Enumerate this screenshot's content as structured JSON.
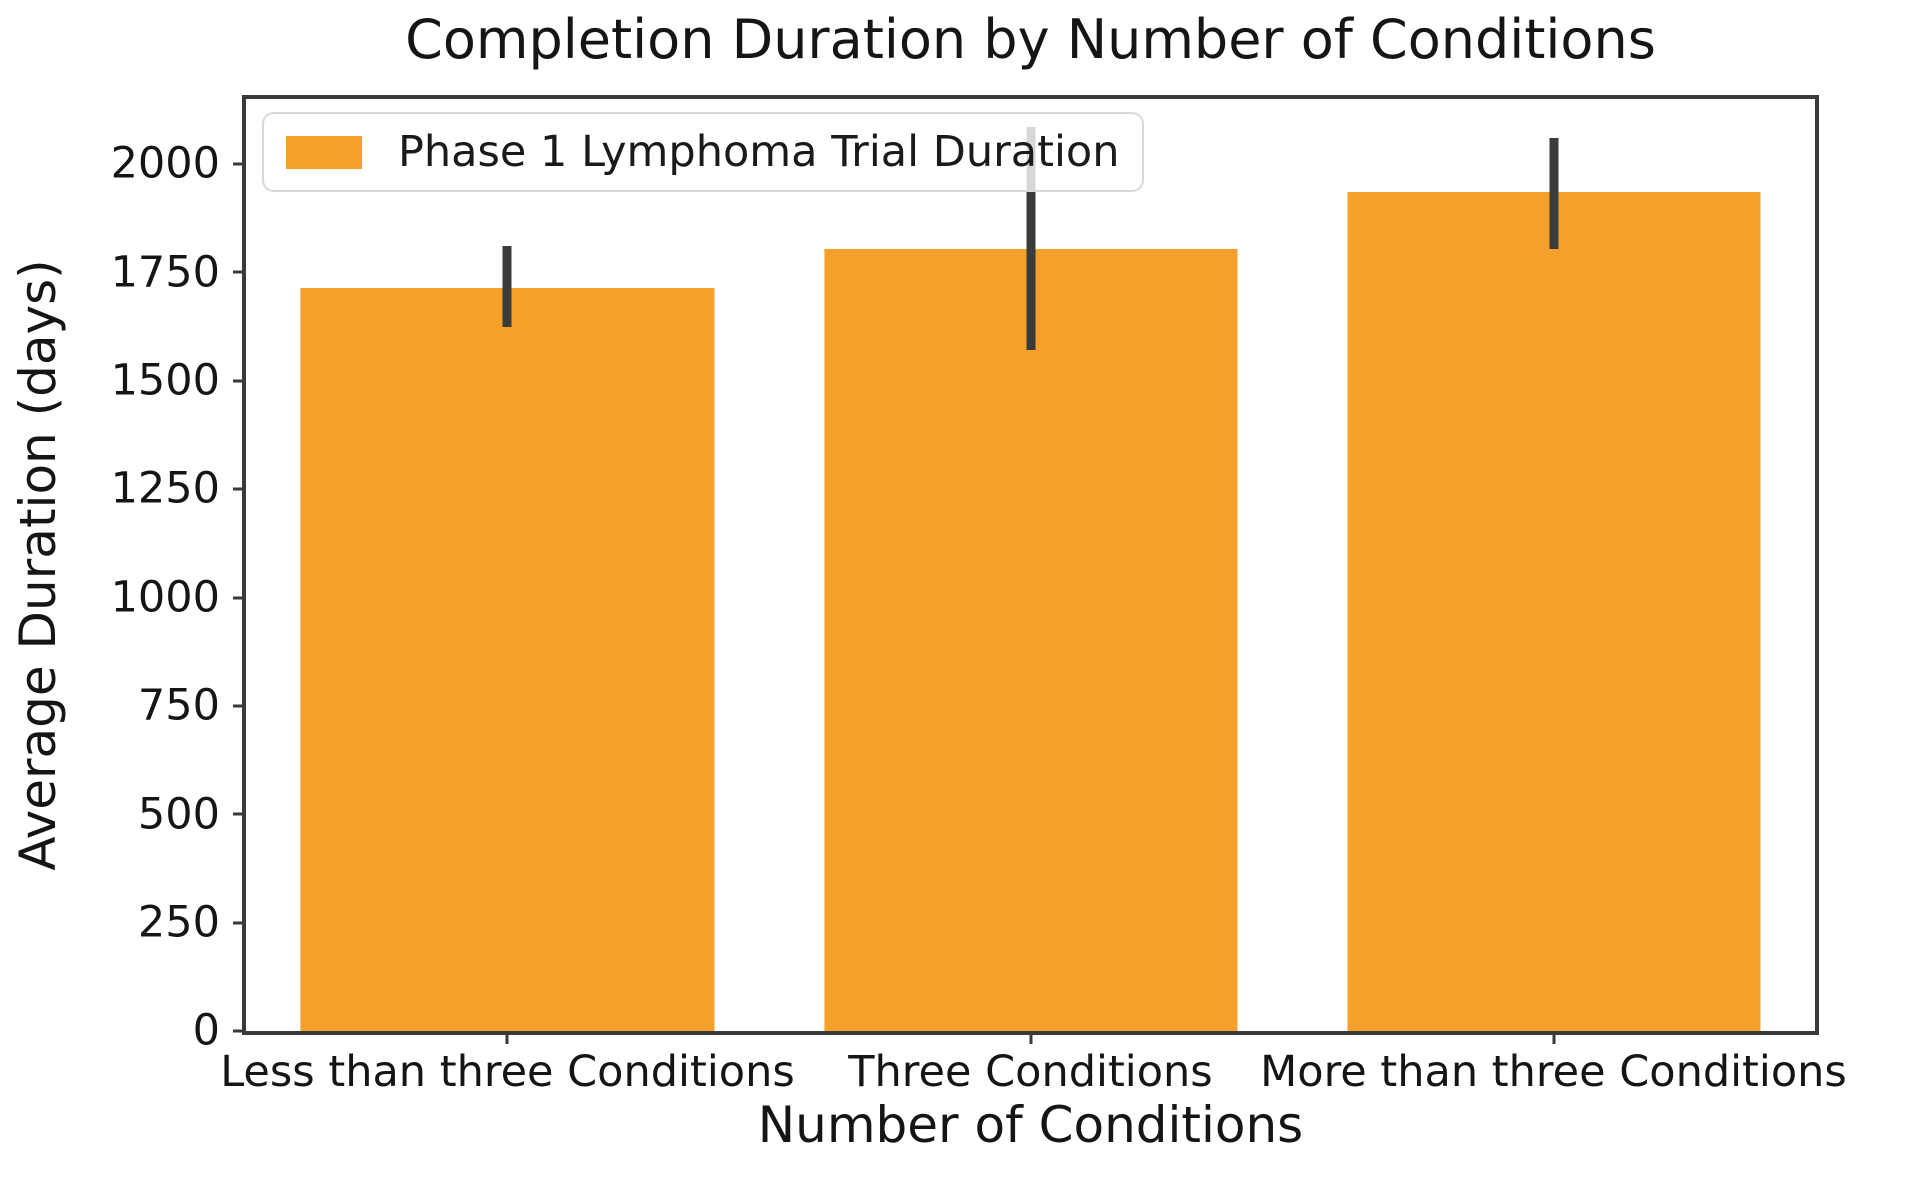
{
  "chart_data": {
    "type": "bar",
    "title": "Completion Duration by Number of Conditions",
    "xlabel": "Number of Conditions",
    "ylabel": "Average Duration (days)",
    "legend": {
      "label": "Phase 1 Lymphoma Trial Duration",
      "position": "upper left"
    },
    "categories": [
      "Less than three Conditions",
      "Three Conditions",
      "More than three Conditions"
    ],
    "series": [
      {
        "name": "Phase 1 Lymphoma Trial Duration",
        "values": [
          1715,
          1805,
          1935
        ],
        "error_low": [
          1625,
          1570,
          1805
        ],
        "error_high": [
          1810,
          2085,
          2060
        ]
      }
    ],
    "yticks": [
      0,
      250,
      500,
      750,
      1000,
      1250,
      1500,
      1750,
      2000
    ],
    "ylim": [
      0,
      2150
    ],
    "grid": false,
    "legend_visible": true,
    "colors": {
      "bar": "#F5A02B",
      "error_bar": "#3B3B3B",
      "spine": "#3A3A3A",
      "legend_border": "#D8D8D8",
      "text": "#151515"
    }
  }
}
